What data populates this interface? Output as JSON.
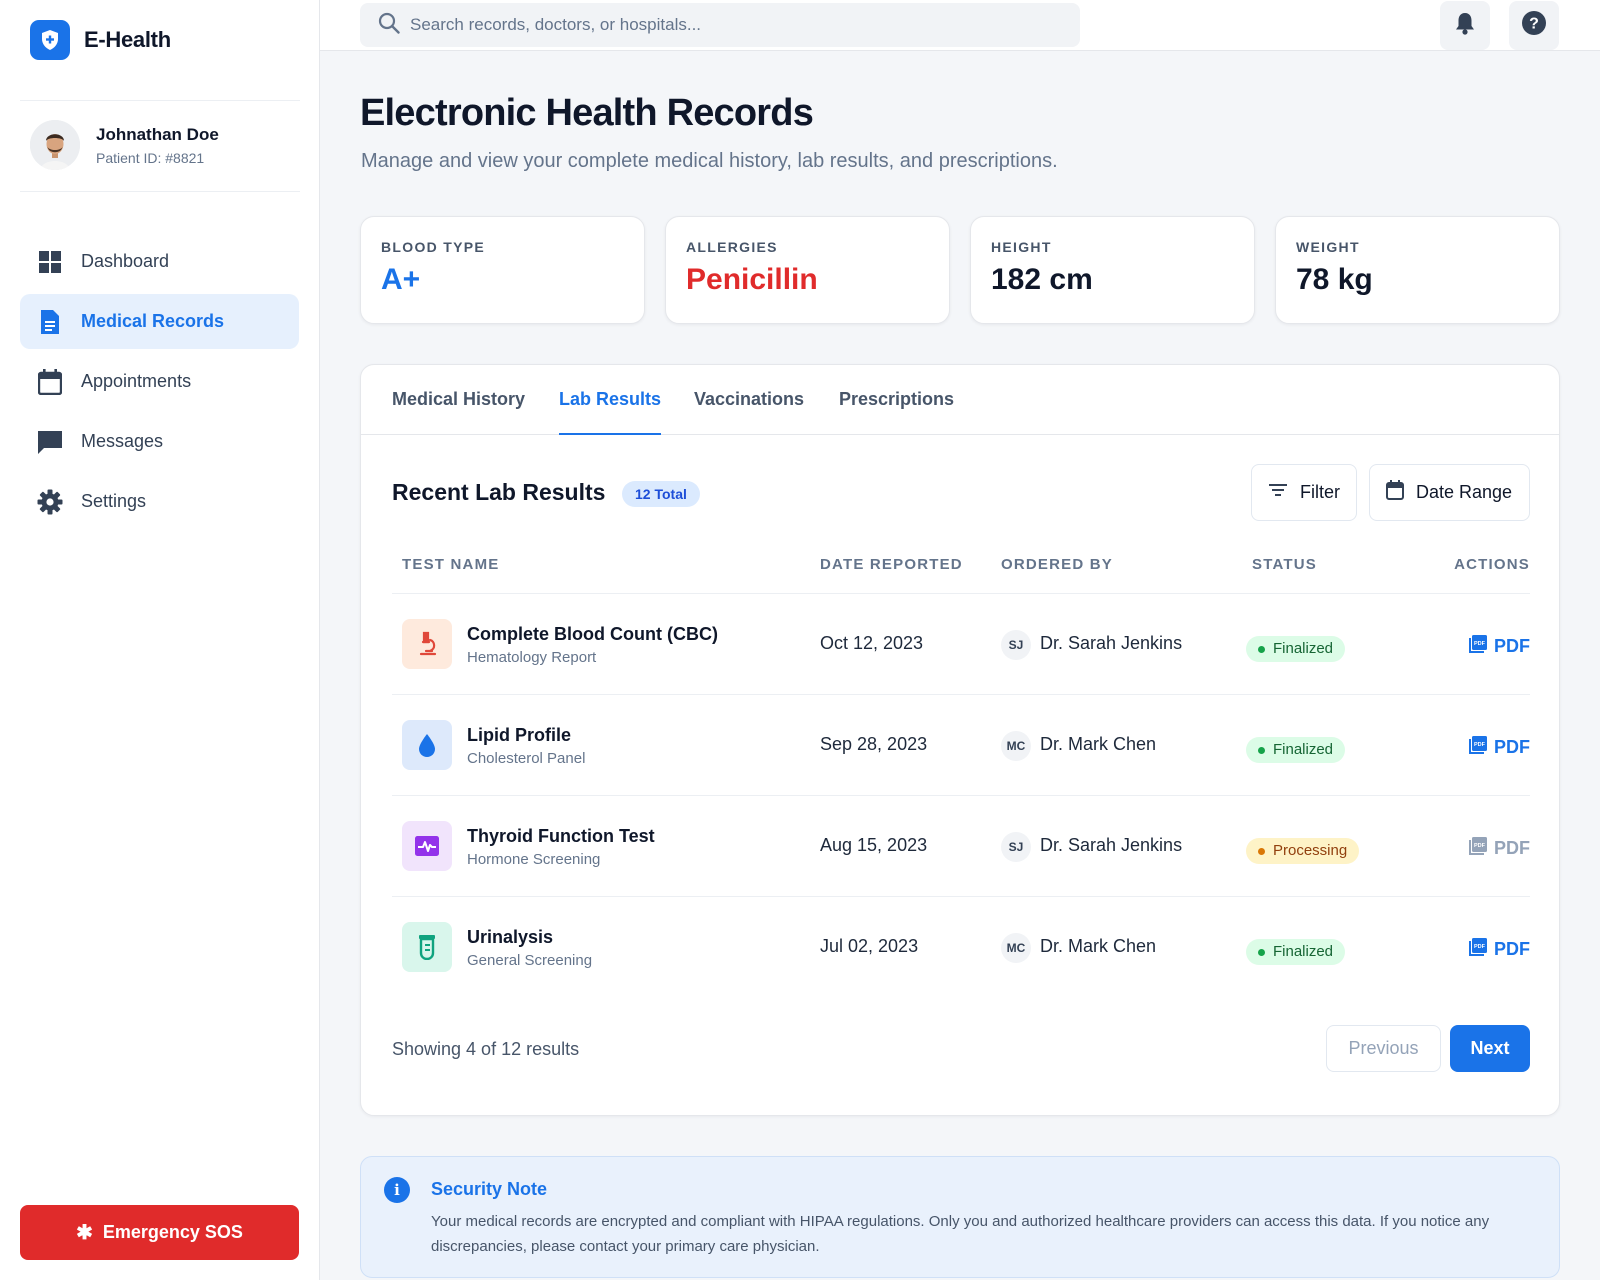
{
  "brand": {
    "name": "E-Health",
    "logo_icon": "shield-plus-icon",
    "accent": "#1a73e8"
  },
  "user": {
    "name": "Johnathan Doe",
    "patient_id": "Patient ID: #8821"
  },
  "nav": {
    "items": [
      {
        "label": "Dashboard",
        "icon": "grid-icon",
        "active": false
      },
      {
        "label": "Medical Records",
        "icon": "document-icon",
        "active": true
      },
      {
        "label": "Appointments",
        "icon": "calendar-icon",
        "active": false
      },
      {
        "label": "Messages",
        "icon": "chat-icon",
        "active": false
      },
      {
        "label": "Settings",
        "icon": "gear-icon",
        "active": false
      }
    ]
  },
  "emergency": {
    "label": "Emergency SOS",
    "color": "#e02b2b"
  },
  "search": {
    "placeholder": "Search records, doctors, or hospitals...",
    "value": ""
  },
  "topbar": {
    "notifications_icon": "bell-icon",
    "help_icon": "help-icon"
  },
  "page": {
    "title": "Electronic Health Records",
    "subtitle": "Manage and view your complete medical history, lab results, and prescriptions."
  },
  "stats": [
    {
      "label": "BLOOD TYPE",
      "value": "A+",
      "color": "#1a73e8"
    },
    {
      "label": "ALLERGIES",
      "value": "Penicillin",
      "color": "#e02b2b"
    },
    {
      "label": "HEIGHT",
      "value": "182 cm",
      "color": "#0f172a"
    },
    {
      "label": "WEIGHT",
      "value": "78 kg",
      "color": "#0f172a"
    }
  ],
  "tabs": [
    {
      "label": "Medical History",
      "active": false
    },
    {
      "label": "Lab Results",
      "active": true
    },
    {
      "label": "Vaccinations",
      "active": false
    },
    {
      "label": "Prescriptions",
      "active": false
    }
  ],
  "lab": {
    "title": "Recent Lab Results",
    "total_badge": "12 Total",
    "filter_label": "Filter",
    "date_range_label": "Date Range",
    "columns": [
      "TEST NAME",
      "DATE REPORTED",
      "ORDERED BY",
      "STATUS",
      "ACTIONS"
    ],
    "rows": [
      {
        "name": "Complete Blood Count (CBC)",
        "sub": "Hematology Report",
        "date": "Oct 12, 2023",
        "doctor_initials": "SJ",
        "doctor": "Dr. Sarah Jenkins",
        "status": "Finalized",
        "action": "PDF",
        "icon": "microscope-icon",
        "icon_color": "#e0483a",
        "icon_bg": "#feeadd"
      },
      {
        "name": "Lipid Profile",
        "sub": "Cholesterol Panel",
        "date": "Sep 28, 2023",
        "doctor_initials": "MC",
        "doctor": "Dr. Mark Chen",
        "status": "Finalized",
        "action": "PDF",
        "icon": "drop-icon",
        "icon_color": "#1a73e8",
        "icon_bg": "#dde9fb"
      },
      {
        "name": "Thyroid Function Test",
        "sub": "Hormone Screening",
        "date": "Aug 15, 2023",
        "doctor_initials": "SJ",
        "doctor": "Dr. Sarah Jenkins",
        "status": "Processing",
        "action": "PDF",
        "icon": "pulse-icon",
        "icon_color": "#9333ea",
        "icon_bg": "#f1e4fc"
      },
      {
        "name": "Urinalysis",
        "sub": "General Screening",
        "date": "Jul 02, 2023",
        "doctor_initials": "MC",
        "doctor": "Dr. Mark Chen",
        "status": "Finalized",
        "action": "PDF",
        "icon": "test-tube-icon",
        "icon_color": "#10a37f",
        "icon_bg": "#d9f6ec"
      }
    ],
    "showing": "Showing 4 of 12 results",
    "prev_label": "Previous",
    "next_label": "Next"
  },
  "security_note": {
    "title": "Security Note",
    "text": "Your medical records are encrypted and compliant with HIPAA regulations. Only you and authorized healthcare providers can access this data. If you notice any discrepancies, please contact your primary care physician."
  }
}
